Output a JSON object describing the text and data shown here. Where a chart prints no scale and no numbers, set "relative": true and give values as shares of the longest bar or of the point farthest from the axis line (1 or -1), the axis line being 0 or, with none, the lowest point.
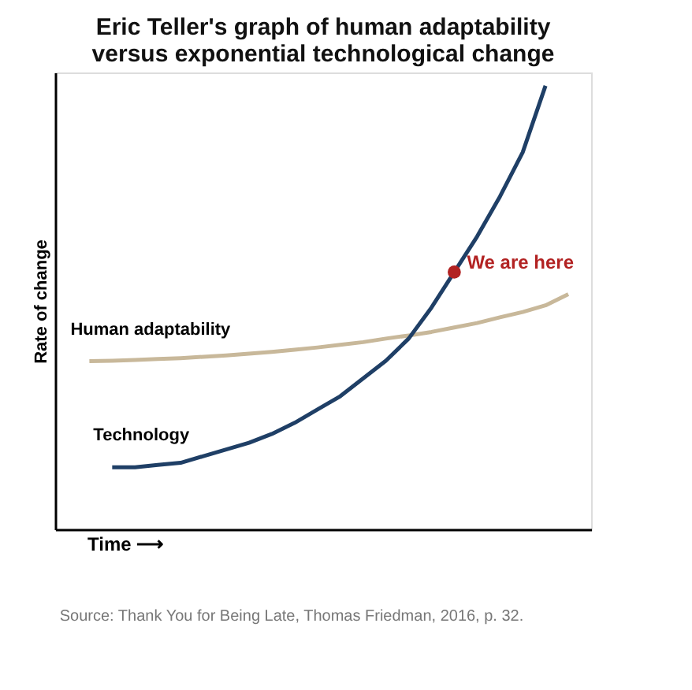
{
  "chart_data": {
    "type": "line",
    "title": "Eric Teller's graph of human adaptability versus exponential technological change",
    "xlabel": "Time ⟶",
    "ylabel": "Rate of change",
    "relative": true,
    "tick_labels": false,
    "annotations": [
      "Source: Thank You for Being Late, Thomas Friedman, 2016, p. 32."
    ],
    "categories": [
      null,
      null,
      null,
      null,
      null,
      null,
      null,
      null,
      null,
      null,
      null,
      null,
      null,
      null,
      null,
      null,
      null,
      null,
      null,
      null,
      null,
      null
    ],
    "series": [
      {
        "name": "Human adaptability",
        "color": "#c8b89a",
        "values": [
          0.379,
          0.38,
          0.382,
          0.384,
          0.386,
          0.389,
          0.392,
          0.396,
          0.4,
          0.405,
          0.41,
          0.416,
          0.422,
          0.43,
          0.437,
          0.445,
          0.455,
          0.465,
          0.478,
          0.49,
          0.505,
          0.53
        ]
      },
      {
        "name": "Technology",
        "color": "#1f3f66",
        "values": [
          null,
          0.14,
          0.14,
          0.145,
          0.15,
          0.165,
          0.18,
          0.195,
          0.215,
          0.24,
          0.27,
          0.3,
          0.34,
          0.38,
          0.43,
          0.5,
          0.58,
          0.66,
          0.75,
          0.85,
          1.0,
          null
        ]
      },
      {
        "name": "We are here",
        "type": "line",
        "marker": "circle",
        "color": "#b22222",
        "values": [
          null,
          null,
          null,
          null,
          null,
          null,
          null,
          null,
          null,
          null,
          null,
          null,
          null,
          null,
          null,
          null,
          0.58,
          null,
          null,
          null,
          null,
          null
        ]
      }
    ]
  }
}
